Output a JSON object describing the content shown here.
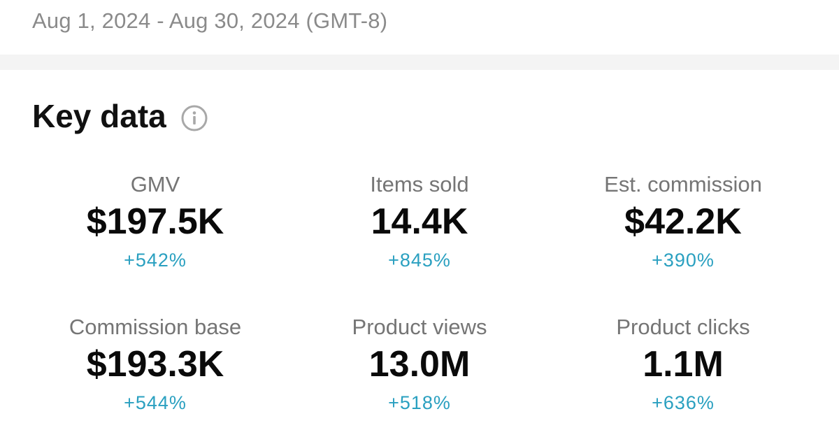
{
  "date_range": "Aug 1, 2024 - Aug 30, 2024 (GMT-8)",
  "card": {
    "title": "Key data",
    "info_icon": "info-circle-icon"
  },
  "metrics": [
    {
      "label": "GMV",
      "value": "$197.5K",
      "change": "+542%"
    },
    {
      "label": "Items sold",
      "value": "14.4K",
      "change": "+845%"
    },
    {
      "label": "Est. commission",
      "value": "$42.2K",
      "change": "+390%"
    },
    {
      "label": "Commission base",
      "value": "$193.3K",
      "change": "+544%"
    },
    {
      "label": "Product views",
      "value": "13.0M",
      "change": "+518%"
    },
    {
      "label": "Product clicks",
      "value": "1.1M",
      "change": "+636%"
    }
  ],
  "colors": {
    "positive_change": "#2aa0c0",
    "label_gray": "#757575",
    "date_gray": "#8a8a8a",
    "divider": "#f4f4f4"
  }
}
